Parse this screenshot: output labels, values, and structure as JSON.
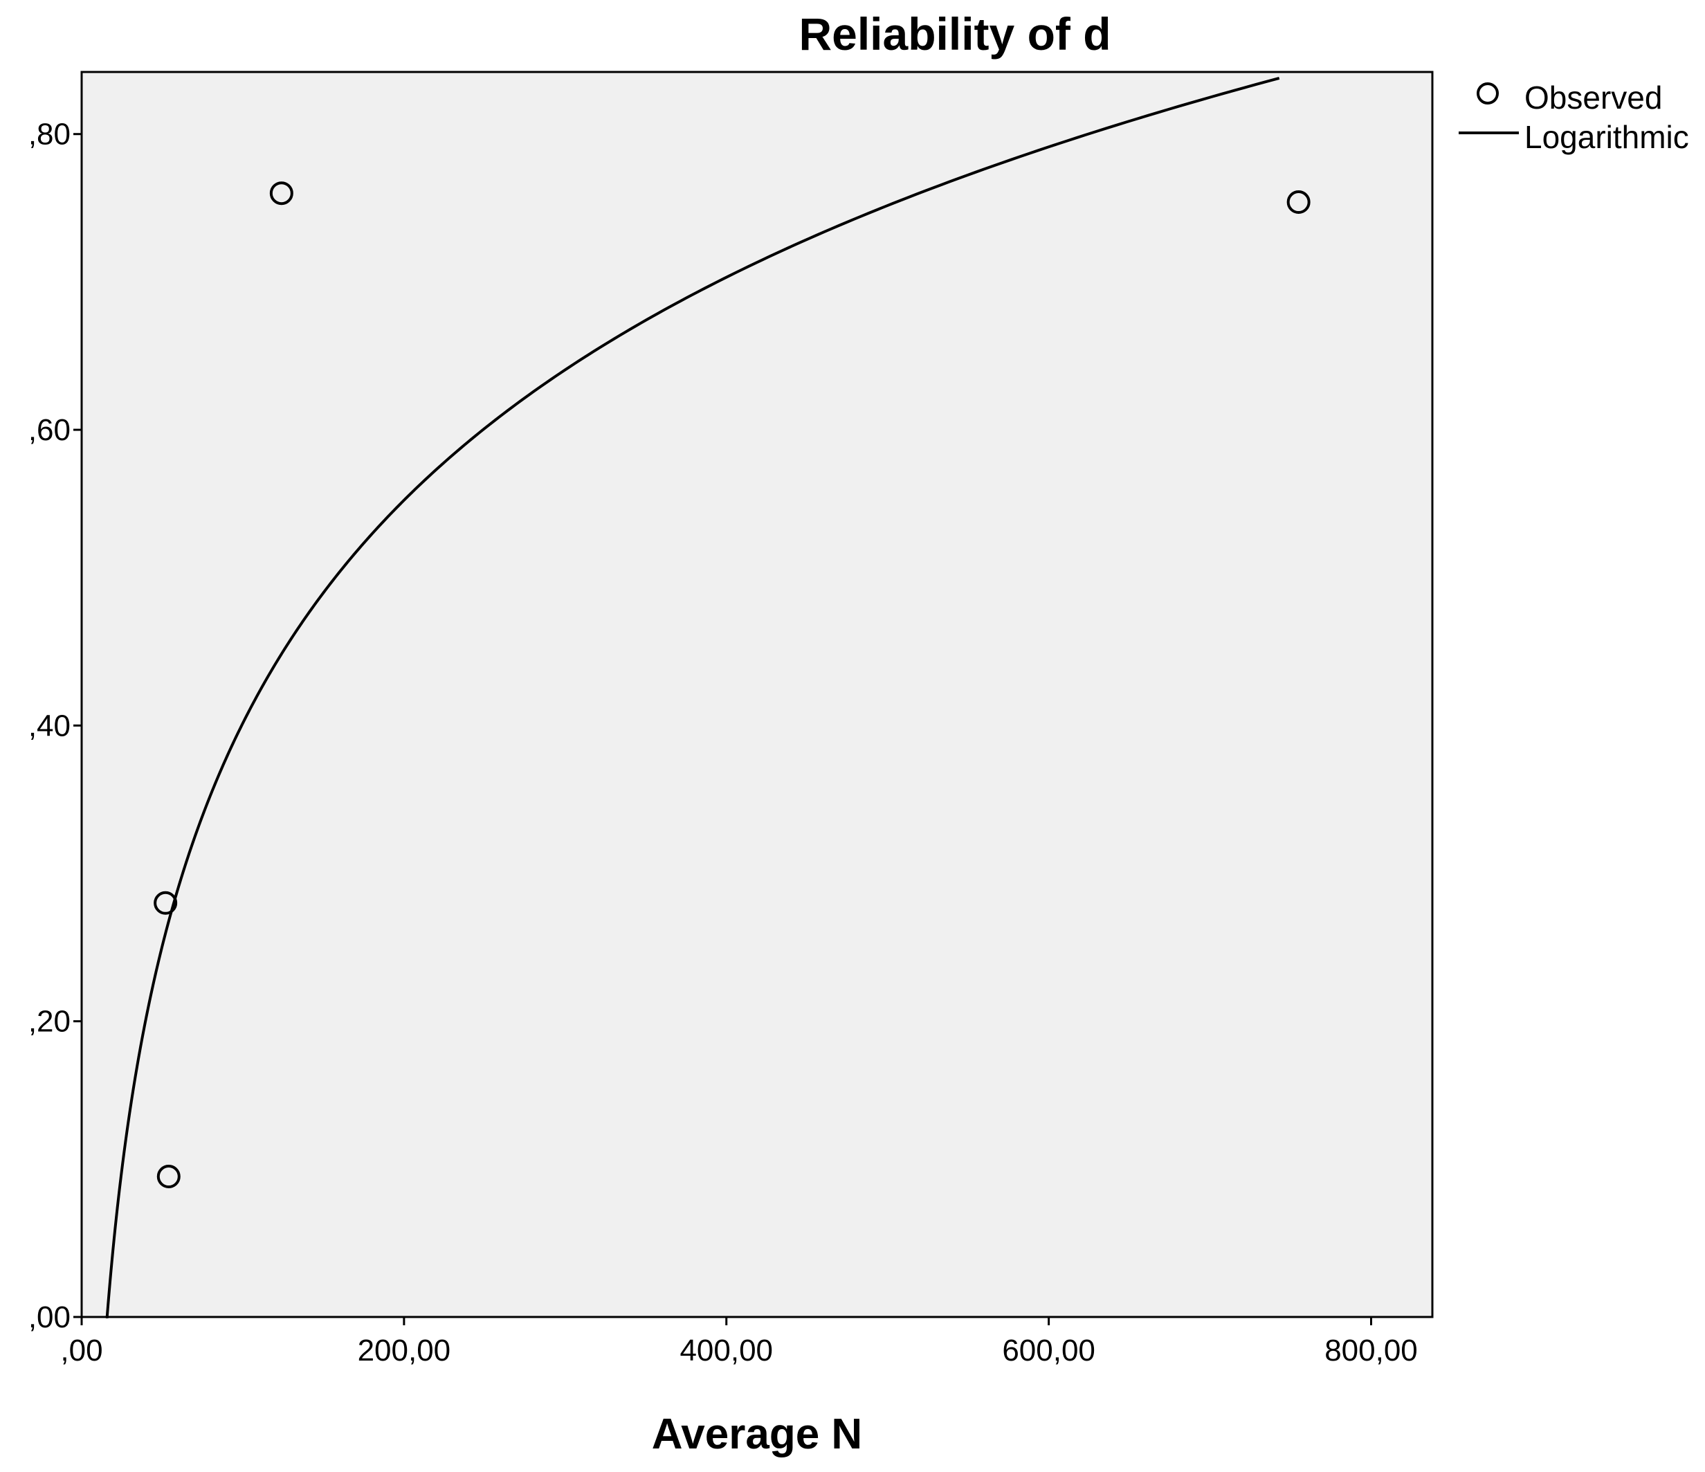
{
  "chart_data": {
    "type": "scatter",
    "title": "Reliability of d",
    "xlabel": "Average N",
    "ylabel": "",
    "xlim": [
      0,
      838
    ],
    "ylim": [
      0,
      0.842
    ],
    "x_ticks": [
      0,
      200,
      400,
      600,
      800
    ],
    "x_tick_labels": [
      ",00",
      "200,00",
      "400,00",
      "600,00",
      "800,00"
    ],
    "y_ticks": [
      0,
      0.2,
      0.4,
      0.6,
      0.8
    ],
    "y_tick_labels": [
      ",00",
      ",20",
      ",40",
      ",60",
      ",80"
    ],
    "series": [
      {
        "name": "Observed",
        "kind": "points",
        "marker": "open-circle",
        "x": [
          52,
          54,
          124,
          755
        ],
        "y": [
          0.28,
          0.095,
          0.76,
          0.754
        ]
      },
      {
        "name": "Logarithmic",
        "kind": "fit-curve",
        "model": "logarithmic",
        "intercept": -0.6,
        "slope": 0.2175,
        "x_range": [
          15,
          743
        ]
      }
    ],
    "legend": {
      "position": "right"
    },
    "grid": false,
    "colors": {
      "plot_background": "#f0f0f0",
      "line": "#000000",
      "marker": "#000000"
    }
  }
}
